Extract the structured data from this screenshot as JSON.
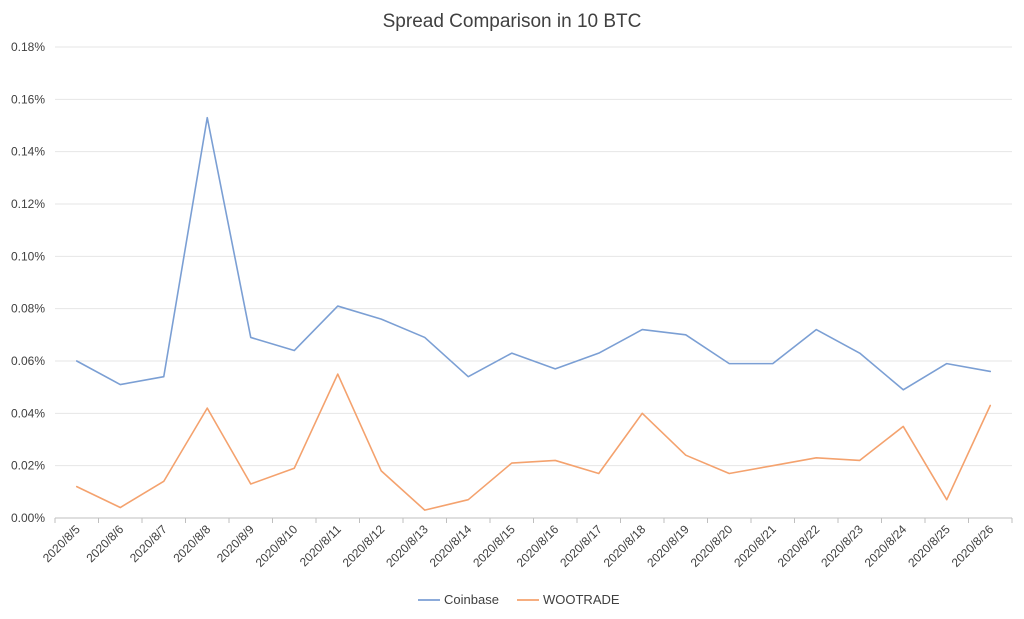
{
  "chart_data": {
    "type": "line",
    "title": "Spread Comparison in 10 BTC",
    "xlabel": "",
    "ylabel": "",
    "categories": [
      "2020/8/5",
      "2020/8/6",
      "2020/8/7",
      "2020/8/8",
      "2020/8/9",
      "2020/8/10",
      "2020/8/11",
      "2020/8/12",
      "2020/8/13",
      "2020/8/14",
      "2020/8/15",
      "2020/8/16",
      "2020/8/17",
      "2020/8/18",
      "2020/8/19",
      "2020/8/20",
      "2020/8/21",
      "2020/8/22",
      "2020/8/23",
      "2020/8/24",
      "2020/8/25",
      "2020/8/26"
    ],
    "ylim": [
      0,
      0.18
    ],
    "yticks": [
      0,
      0.02,
      0.04,
      0.06,
      0.08,
      0.1,
      0.12,
      0.14,
      0.16,
      0.18
    ],
    "ytick_labels": [
      "0.00%",
      "0.02%",
      "0.04%",
      "0.06%",
      "0.08%",
      "0.10%",
      "0.12%",
      "0.14%",
      "0.16%",
      "0.18%"
    ],
    "grid": true,
    "legend_position": "bottom",
    "series": [
      {
        "name": "Coinbase",
        "color": "#7b9fd4",
        "values": [
          0.06,
          0.051,
          0.054,
          0.153,
          0.069,
          0.064,
          0.081,
          0.076,
          0.069,
          0.054,
          0.063,
          0.057,
          0.063,
          0.072,
          0.07,
          0.059,
          0.059,
          0.072,
          0.063,
          0.049,
          0.059,
          0.056
        ]
      },
      {
        "name": "WOOTRADE",
        "color": "#f4a26e",
        "values": [
          0.012,
          0.004,
          0.014,
          0.042,
          0.013,
          0.019,
          0.055,
          0.018,
          0.003,
          0.007,
          0.021,
          0.022,
          0.017,
          0.04,
          0.024,
          0.017,
          0.02,
          0.023,
          0.022,
          0.035,
          0.007,
          0.043
        ]
      }
    ]
  }
}
